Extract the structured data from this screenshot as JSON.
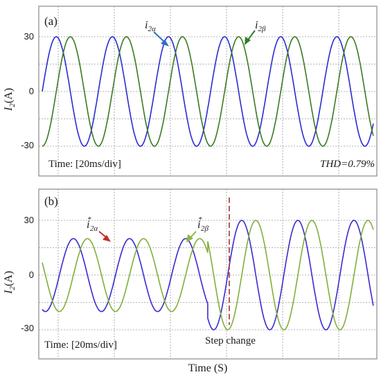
{
  "figure": {
    "xlabel": "Time (S)"
  },
  "chart_data": [
    {
      "type": "line",
      "panel_label": "(a)",
      "ylabel_main": "I",
      "ylabel_sub": "2",
      "ylabel_unit": "(A)",
      "ylim": [
        -45,
        45
      ],
      "yticks": [
        30,
        0,
        -30
      ],
      "grid": true,
      "time_division_ms": 20,
      "time_note": "Time: [20ms/div]",
      "thd_note": "THD=0.79%",
      "series": [
        {
          "label_main": "i",
          "label_sub": "2α",
          "label_sup": "",
          "color": "#2b2bd0",
          "arrow_color": "#2e6fc0",
          "period_ms": 20,
          "phase_deg": 0,
          "segments": [
            {
              "t_start_ms": 0,
              "t_end_ms": 118,
              "amplitude": 30
            }
          ]
        },
        {
          "label_main": "i",
          "label_sub": "2β",
          "label_sup": "",
          "color": "#3a7a22",
          "arrow_color": "#2f7d2f",
          "period_ms": 20,
          "phase_deg": -90,
          "segments": [
            {
              "t_start_ms": 0,
              "t_end_ms": 118,
              "amplitude": 30
            }
          ]
        }
      ]
    },
    {
      "type": "line",
      "panel_label": "(b)",
      "ylabel_main": "I",
      "ylabel_sub": "2",
      "ylabel_unit": "(A)",
      "ylim": [
        -45,
        45
      ],
      "yticks": [
        30,
        0,
        -30
      ],
      "grid": true,
      "time_division_ms": 20,
      "time_note": "Time: [20ms/div]",
      "step_change_label": "Step change",
      "step_change_time_ms": 59,
      "series": [
        {
          "label_main": "i",
          "label_sub": "2α",
          "label_sup": "*",
          "color": "#3a2ad0",
          "arrow_color": "#c0302a",
          "period_ms": 20,
          "phase_deg": -110,
          "segments": [
            {
              "t_start_ms": 0,
              "t_end_ms": 59,
              "amplitude": 20
            },
            {
              "t_start_ms": 59,
              "t_end_ms": 118,
              "amplitude": 30
            }
          ]
        },
        {
          "label_main": "i",
          "label_sub": "2β",
          "label_sup": "*",
          "color": "#7fb03a",
          "arrow_color": "#8ab83a",
          "period_ms": 20,
          "phase_deg": 160,
          "segments": [
            {
              "t_start_ms": 0,
              "t_end_ms": 59,
              "amplitude": 20
            },
            {
              "t_start_ms": 59,
              "t_end_ms": 118,
              "amplitude": 30
            }
          ]
        }
      ]
    }
  ]
}
